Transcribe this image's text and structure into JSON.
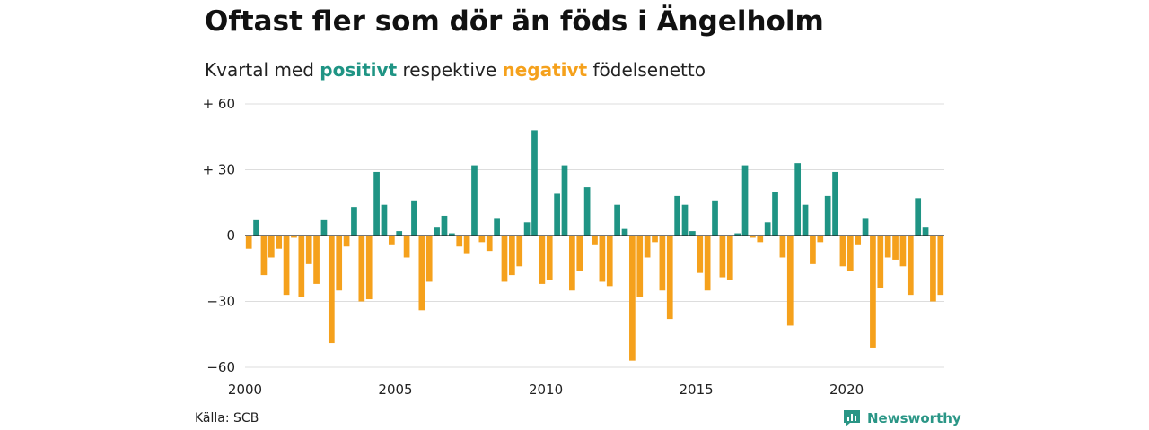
{
  "header": {
    "title": "Oftast fler som dör än föds i Ängelholm",
    "subtitle_prefix": "Kvartal med",
    "subtitle_positive": "positivt",
    "subtitle_mid": "respektive",
    "subtitle_negative": "negativt",
    "subtitle_suffix": "födelsenetto"
  },
  "colors": {
    "positive": "#1f9484",
    "negative": "#f5a11c",
    "grid": "#dddddd",
    "zero_line": "#222222"
  },
  "chart_data": {
    "type": "bar",
    "title": "Oftast fler som dör än föds i Ängelholm",
    "subtitle": "Kvartal med positivt respektive negativt födelsenetto",
    "xlabel": "",
    "ylabel": "",
    "ylim": [
      -60,
      60
    ],
    "yticks": [
      {
        "value": 60,
        "label": "+ 60"
      },
      {
        "value": 30,
        "label": "+ 30"
      },
      {
        "value": 0,
        "label": "0"
      },
      {
        "value": -30,
        "label": "−30"
      },
      {
        "value": -60,
        "label": "−60"
      }
    ],
    "xticks": [
      {
        "value": 2000,
        "label": "2000"
      },
      {
        "value": 2005,
        "label": "2005"
      },
      {
        "value": 2010,
        "label": "2010"
      },
      {
        "value": 2015,
        "label": "2015"
      },
      {
        "value": 2020,
        "label": "2020"
      }
    ],
    "x_start": 2000,
    "x_end": 2023.25,
    "grid": true,
    "legend": "none",
    "values": [
      -6,
      7,
      -18,
      -10,
      -6,
      -27,
      -1,
      -28,
      -13,
      -22,
      7,
      -49,
      -25,
      -5,
      13,
      -30,
      -29,
      29,
      14,
      -4,
      2,
      -10,
      16,
      -34,
      -21,
      4,
      9,
      1,
      -5,
      -8,
      32,
      -3,
      -7,
      8,
      -21,
      -18,
      -14,
      6,
      48,
      -22,
      -20,
      19,
      32,
      -25,
      -16,
      22,
      -4,
      -21,
      -23,
      14,
      3,
      -57,
      -28,
      -10,
      -3,
      -25,
      -38,
      18,
      14,
      2,
      -17,
      -25,
      16,
      -19,
      -20,
      1,
      32,
      -1,
      -3,
      6,
      20,
      -10,
      -41,
      33,
      14,
      -13,
      -3,
      18,
      29,
      -14,
      -16,
      -4,
      8,
      -51,
      -24,
      -10,
      -11,
      -14,
      -27,
      17,
      4,
      -30,
      -27
    ]
  },
  "footer": {
    "source": "Källa: SCB",
    "brand": "Newsworthy"
  }
}
